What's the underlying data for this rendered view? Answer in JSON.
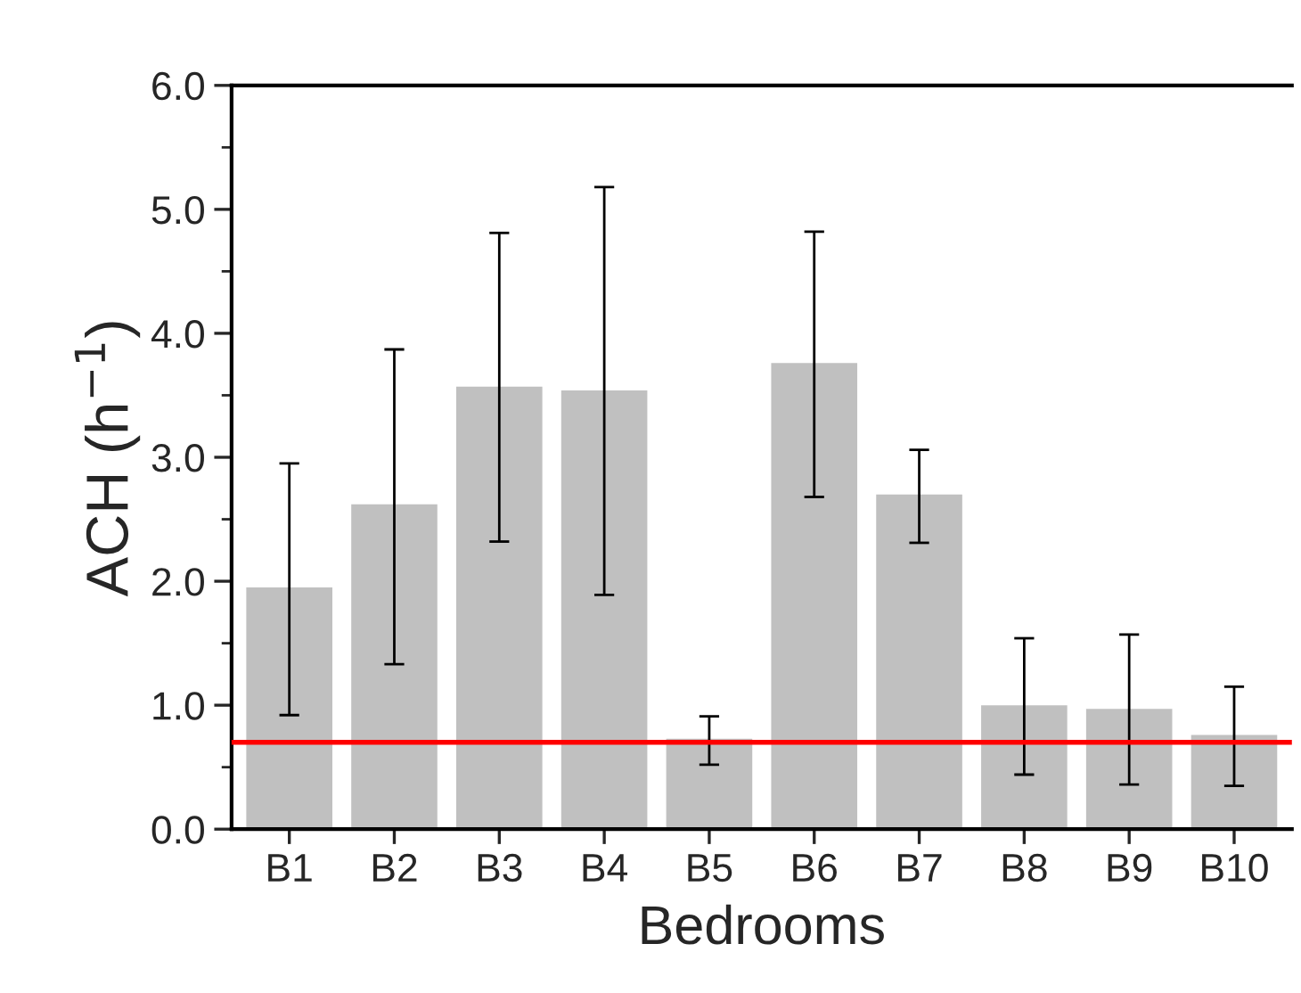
{
  "chart_data": {
    "type": "bar",
    "xlabel": "Bedrooms",
    "ylabel": "ACH (h$^{−1}$)",
    "categories": [
      "B1",
      "B2",
      "B3",
      "B4",
      "B5",
      "B6",
      "B7",
      "B8",
      "B9",
      "B10"
    ],
    "values": [
      1.95,
      2.62,
      3.57,
      3.54,
      0.73,
      3.76,
      2.7,
      1.0,
      0.97,
      0.76
    ],
    "errors": [
      [
        0.92,
        2.95
      ],
      [
        1.33,
        3.87
      ],
      [
        2.32,
        4.81
      ],
      [
        1.89,
        5.18
      ],
      [
        0.52,
        0.91
      ],
      [
        2.68,
        4.82
      ],
      [
        2.31,
        3.06
      ],
      [
        0.44,
        1.54
      ],
      [
        0.36,
        1.57
      ],
      [
        0.35,
        1.15
      ]
    ],
    "color": "#c0c0c0",
    "ylim": [
      0,
      6
    ],
    "yticks": [
      {
        "value": 0,
        "label": "0.0"
      },
      {
        "value": 1,
        "label": "1.0"
      },
      {
        "value": 2,
        "label": "2.0"
      },
      {
        "value": 3,
        "label": "3.0"
      },
      {
        "value": 4,
        "label": "4.0"
      },
      {
        "value": 5,
        "label": "5.0"
      },
      {
        "value": 6,
        "label": "6.0"
      }
    ],
    "ref_lines": [
      {
        "axis": "y",
        "value": 0.7,
        "color": "#ff0000"
      }
    ],
    "grid": false,
    "legend": false
  }
}
